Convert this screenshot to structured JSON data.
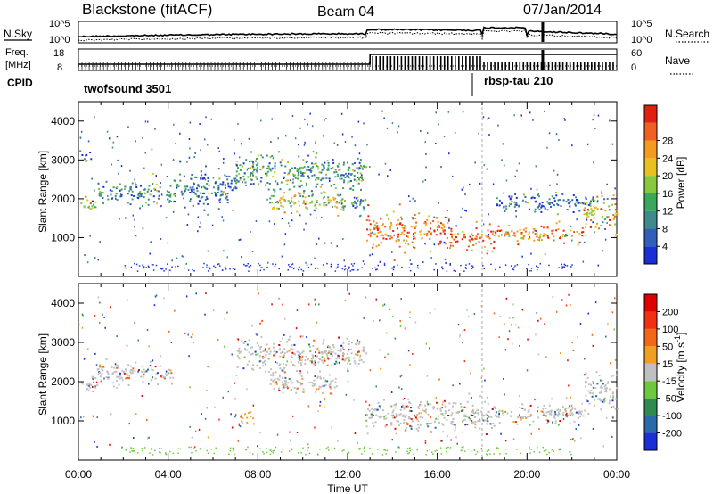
{
  "header": {
    "station": "Blackstone (fitACF)",
    "beam": "Beam 04",
    "date": "07/Jan/2014"
  },
  "noise_panel": {
    "left_label": "N.Sky",
    "right_label": "N.Search",
    "left_ticks": [
      "10^5",
      "10^0"
    ],
    "right_ticks": [
      "10^5",
      "10^0"
    ]
  },
  "freq_panel": {
    "left_label_line1": "Freq.",
    "left_label_line2": "[MHz]",
    "right_label": "Nave",
    "left_ticks": [
      "18",
      "8"
    ],
    "right_ticks": [
      "60",
      "0"
    ]
  },
  "cpid_panel": {
    "label": "CPID",
    "programs": [
      {
        "name": "twofsound 3501",
        "start_hour": 0
      },
      {
        "name": "rbsp-tau 210",
        "start_hour": 18
      }
    ]
  },
  "chart_data": [
    {
      "type": "heatmap",
      "name": "power",
      "ylabel": "Slant Range [km]",
      "yticks": [
        1000,
        2000,
        3000,
        4000
      ],
      "ylim": [
        0,
        4500
      ],
      "xlim": [
        0,
        24
      ],
      "colorbar": {
        "label": "Power [dB]",
        "ticks": [
          "4",
          "8",
          "12",
          "16",
          "20",
          "24",
          "28"
        ],
        "colors": [
          "#1b2fd6",
          "#2f5fb8",
          "#3f8a8c",
          "#3aa85a",
          "#88c83c",
          "#e8c020",
          "#f59a20",
          "#f06020",
          "#e02010"
        ]
      },
      "bands": [
        {
          "start": 0.0,
          "end": 0.8,
          "center": 1900,
          "width": 250,
          "level": 0.45
        },
        {
          "start": 0.0,
          "end": 0.6,
          "center": 3150,
          "width": 150,
          "level": 0.1
        },
        {
          "start": 0.8,
          "end": 4.2,
          "center": 2150,
          "width": 300,
          "level": 0.25
        },
        {
          "start": 4.2,
          "end": 7.0,
          "center": 2300,
          "width": 500,
          "level": 0.15
        },
        {
          "start": 7.0,
          "end": 12.8,
          "center": 2700,
          "width": 500,
          "level": 0.3
        },
        {
          "start": 8.5,
          "end": 11.5,
          "center": 1950,
          "width": 300,
          "level": 0.55
        },
        {
          "start": 11.5,
          "end": 12.8,
          "center": 1900,
          "width": 300,
          "level": 0.35
        },
        {
          "start": 12.8,
          "end": 16.5,
          "center": 1200,
          "width": 450,
          "level": 0.85
        },
        {
          "start": 16.5,
          "end": 18.5,
          "center": 1000,
          "width": 350,
          "level": 0.9
        },
        {
          "start": 18.5,
          "end": 22.5,
          "center": 1100,
          "width": 250,
          "level": 0.8
        },
        {
          "start": 22.5,
          "end": 24.0,
          "center": 1600,
          "width": 500,
          "level": 0.6
        },
        {
          "start": 18.5,
          "end": 23.0,
          "center": 1900,
          "width": 250,
          "level": 0.15
        }
      ]
    },
    {
      "type": "heatmap",
      "name": "velocity",
      "ylabel": "Slant Range [km]",
      "yticks": [
        1000,
        2000,
        3000,
        4000
      ],
      "ylim": [
        0,
        4500
      ],
      "xlim": [
        0,
        24
      ],
      "xticks": [
        "00:00",
        "04:00",
        "08:00",
        "12:00",
        "16:00",
        "20:00",
        "00:00"
      ],
      "xlabel": "Time UT",
      "colorbar": {
        "label": "Velocity [m s",
        "label_sup": "-1",
        "label_end": "]",
        "ticks": [
          "200",
          "100",
          "50",
          "15",
          "-15",
          "-50",
          "-100",
          "-200"
        ],
        "colors": [
          "#1b2fd6",
          "#2a6aa8",
          "#2f8a50",
          "#6cc83c",
          "#c0c0c0",
          "#f0a020",
          "#f06818",
          "#f03010",
          "#e00000"
        ]
      },
      "bands": [
        {
          "start": 0.0,
          "end": 0.8,
          "center": 1950,
          "width": 250,
          "level": 0.5
        },
        {
          "start": 0.8,
          "end": 4.2,
          "center": 2200,
          "width": 300,
          "level": 0.5
        },
        {
          "start": 7.0,
          "end": 12.8,
          "center": 2700,
          "width": 500,
          "level": 0.5
        },
        {
          "start": 8.5,
          "end": 11.5,
          "center": 2000,
          "width": 300,
          "level": 0.5
        },
        {
          "start": 12.8,
          "end": 18.5,
          "center": 1150,
          "width": 450,
          "level": 0.5
        },
        {
          "start": 18.5,
          "end": 22.5,
          "center": 1200,
          "width": 300,
          "level": 0.5
        },
        {
          "start": 22.5,
          "end": 24.0,
          "center": 1800,
          "width": 500,
          "level": 0.5
        },
        {
          "start": 7.2,
          "end": 7.8,
          "center": 1100,
          "width": 200,
          "level": 0.75
        }
      ]
    }
  ]
}
